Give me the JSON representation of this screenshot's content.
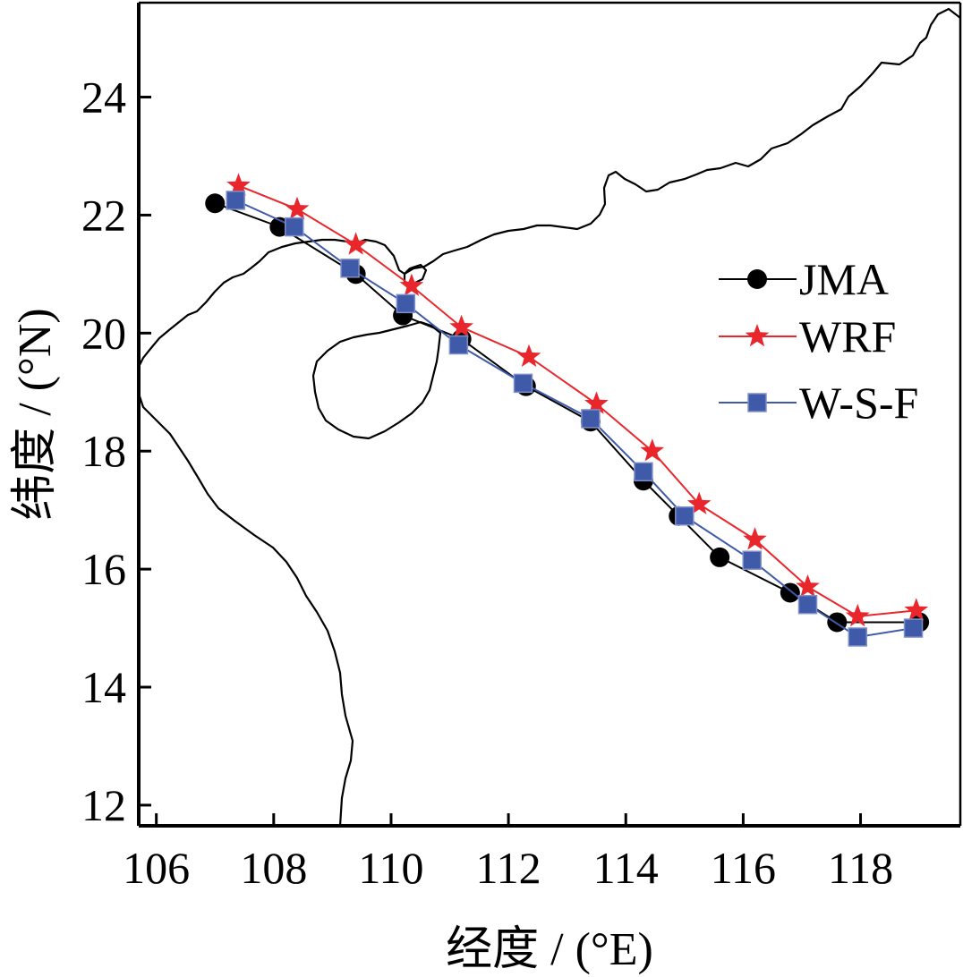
{
  "chart_data": {
    "type": "line",
    "xlabel": "经度 / (°E)",
    "ylabel": "纬度 / (°N)",
    "xlim": [
      105.7,
      119.7
    ],
    "ylim": [
      11.65,
      25.6
    ],
    "xticks": [
      106,
      108,
      110,
      112,
      114,
      116,
      118
    ],
    "yticks": [
      12,
      14,
      16,
      18,
      20,
      22,
      24
    ],
    "grid": false,
    "legend": "right",
    "series": [
      {
        "name": "JMA",
        "color": "#000000",
        "marker": "circle",
        "x": [
          107.0,
          108.1,
          109.4,
          110.2,
          111.2,
          112.3,
          113.4,
          114.3,
          114.9,
          115.6,
          116.8,
          117.6,
          119.0
        ],
        "y": [
          22.2,
          21.8,
          21.0,
          20.3,
          19.9,
          19.1,
          18.5,
          17.5,
          16.9,
          16.2,
          15.6,
          15.1,
          15.1
        ]
      },
      {
        "name": "WRF",
        "color": "#e8262b",
        "marker": "star",
        "x": [
          107.4,
          108.4,
          109.4,
          110.35,
          111.2,
          112.35,
          113.5,
          114.45,
          115.25,
          116.2,
          117.1,
          117.95,
          118.95
        ],
        "y": [
          22.5,
          22.1,
          21.5,
          20.8,
          20.1,
          19.6,
          18.8,
          18.0,
          17.1,
          16.5,
          15.7,
          15.2,
          15.3
        ]
      },
      {
        "name": "W-S-F",
        "color": "#3e5aa8",
        "marker": "square",
        "x": [
          107.35,
          108.35,
          109.3,
          110.25,
          111.15,
          112.25,
          113.4,
          114.3,
          115.0,
          116.15,
          117.1,
          117.95,
          118.9
        ],
        "y": [
          22.25,
          21.8,
          21.1,
          20.5,
          19.8,
          19.15,
          18.55,
          17.65,
          16.9,
          16.15,
          15.4,
          14.85,
          15.0
        ]
      }
    ]
  }
}
